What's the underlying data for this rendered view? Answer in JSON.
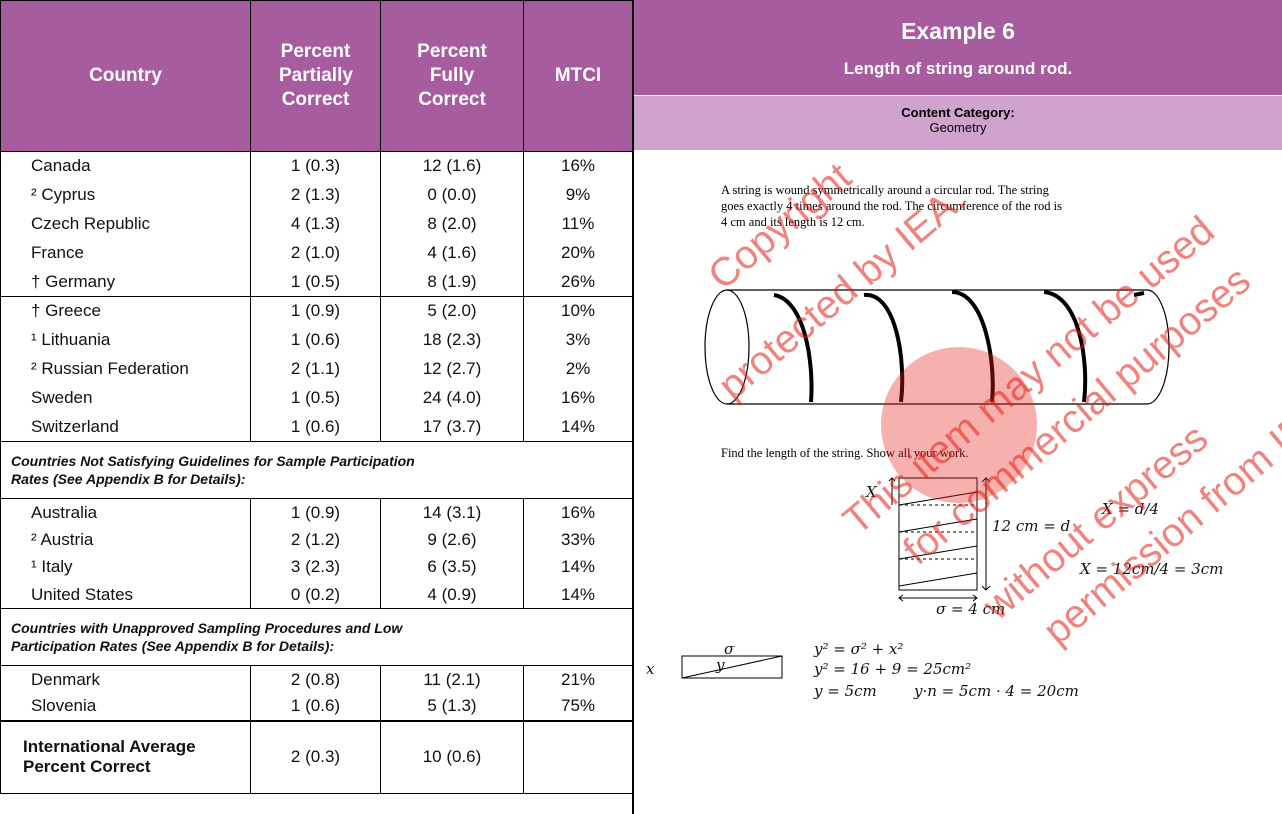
{
  "table": {
    "header": {
      "country": "Country",
      "partial": "Percent Partially Correct",
      "fully": "Percent Fully Correct",
      "mtci": "MTCI"
    },
    "groups": [
      {
        "rows": [
          [
            "Canada",
            "1 (0.3)",
            "12 (1.6)",
            "16%"
          ],
          [
            "² Cyprus",
            "2 (1.3)",
            "0 (0.0)",
            "9%"
          ],
          [
            "Czech Republic",
            "4 (1.3)",
            "8 (2.0)",
            "11%"
          ],
          [
            "France",
            "2 (1.0)",
            "4 (1.6)",
            "20%"
          ],
          [
            "† Germany",
            "1 (0.5)",
            "8 (1.9)",
            "26%"
          ],
          [
            "† Greece",
            "1 (0.9)",
            "5 (2.0)",
            "10%"
          ],
          [
            "¹ Lithuania",
            "1 (0.6)",
            "18 (2.3)",
            "3%"
          ],
          [
            "² Russian Federation",
            "2 (1.1)",
            "12 (2.7)",
            "2%"
          ],
          [
            "Sweden",
            "1 (0.5)",
            "24 (4.0)",
            "16%"
          ],
          [
            "Switzerland",
            "1 (0.6)",
            "17 (3.7)",
            "14%"
          ]
        ]
      },
      {
        "heading": "Countries Not Satisfying Guidelines for Sample Participation Rates (See Appendix B for Details):",
        "rows": [
          [
            "Australia",
            "1 (0.9)",
            "14 (3.1)",
            "16%"
          ],
          [
            "² Austria",
            "2 (1.2)",
            "9 (2.6)",
            "33%"
          ],
          [
            "¹ Italy",
            "3 (2.3)",
            "6 (3.5)",
            "14%"
          ],
          [
            "United States",
            "0 (0.2)",
            "4 (0.9)",
            "14%"
          ]
        ]
      },
      {
        "heading": "Countries with Unapproved Sampling Procedures and Low Participation Rates (See Appendix B for Details):",
        "rows": [
          [
            "Denmark",
            "2 (0.8)",
            "11 (2.1)",
            "21%"
          ],
          [
            "Slovenia",
            "1 (0.6)",
            "5 (1.3)",
            "75%"
          ]
        ]
      }
    ],
    "average": {
      "label": "International Average Percent Correct",
      "partial": "2 (0.3)",
      "fully": "10 (0.6)"
    }
  },
  "example": {
    "title": "Example 6",
    "subtitle": "Length of string around rod.",
    "category_label": "Content Category:",
    "category": "Geometry",
    "problem": "A string is wound symmetrically around a circular rod. The string goes exactly 4 times around the rod. The circumference of the rod is 4 cm and its length is 12 cm.",
    "question": "Find the length of the string. Show all your work.",
    "work": [
      "X",
      "12 cm = d",
      "X = d/4",
      "X = 12cm/4 = 3cm",
      "σ = 4 cm",
      "σ",
      "x",
      "y",
      "y² = σ² + x²",
      "y² = 16 + 9 = 25cm²",
      "y = 5cm",
      "y·n = 5cm · 4 = 20cm"
    ],
    "watermark": [
      "Copyright",
      "protected by IEA.",
      "This item may not be used",
      "for commercial purposes",
      "without express",
      "permission from IEA"
    ]
  }
}
